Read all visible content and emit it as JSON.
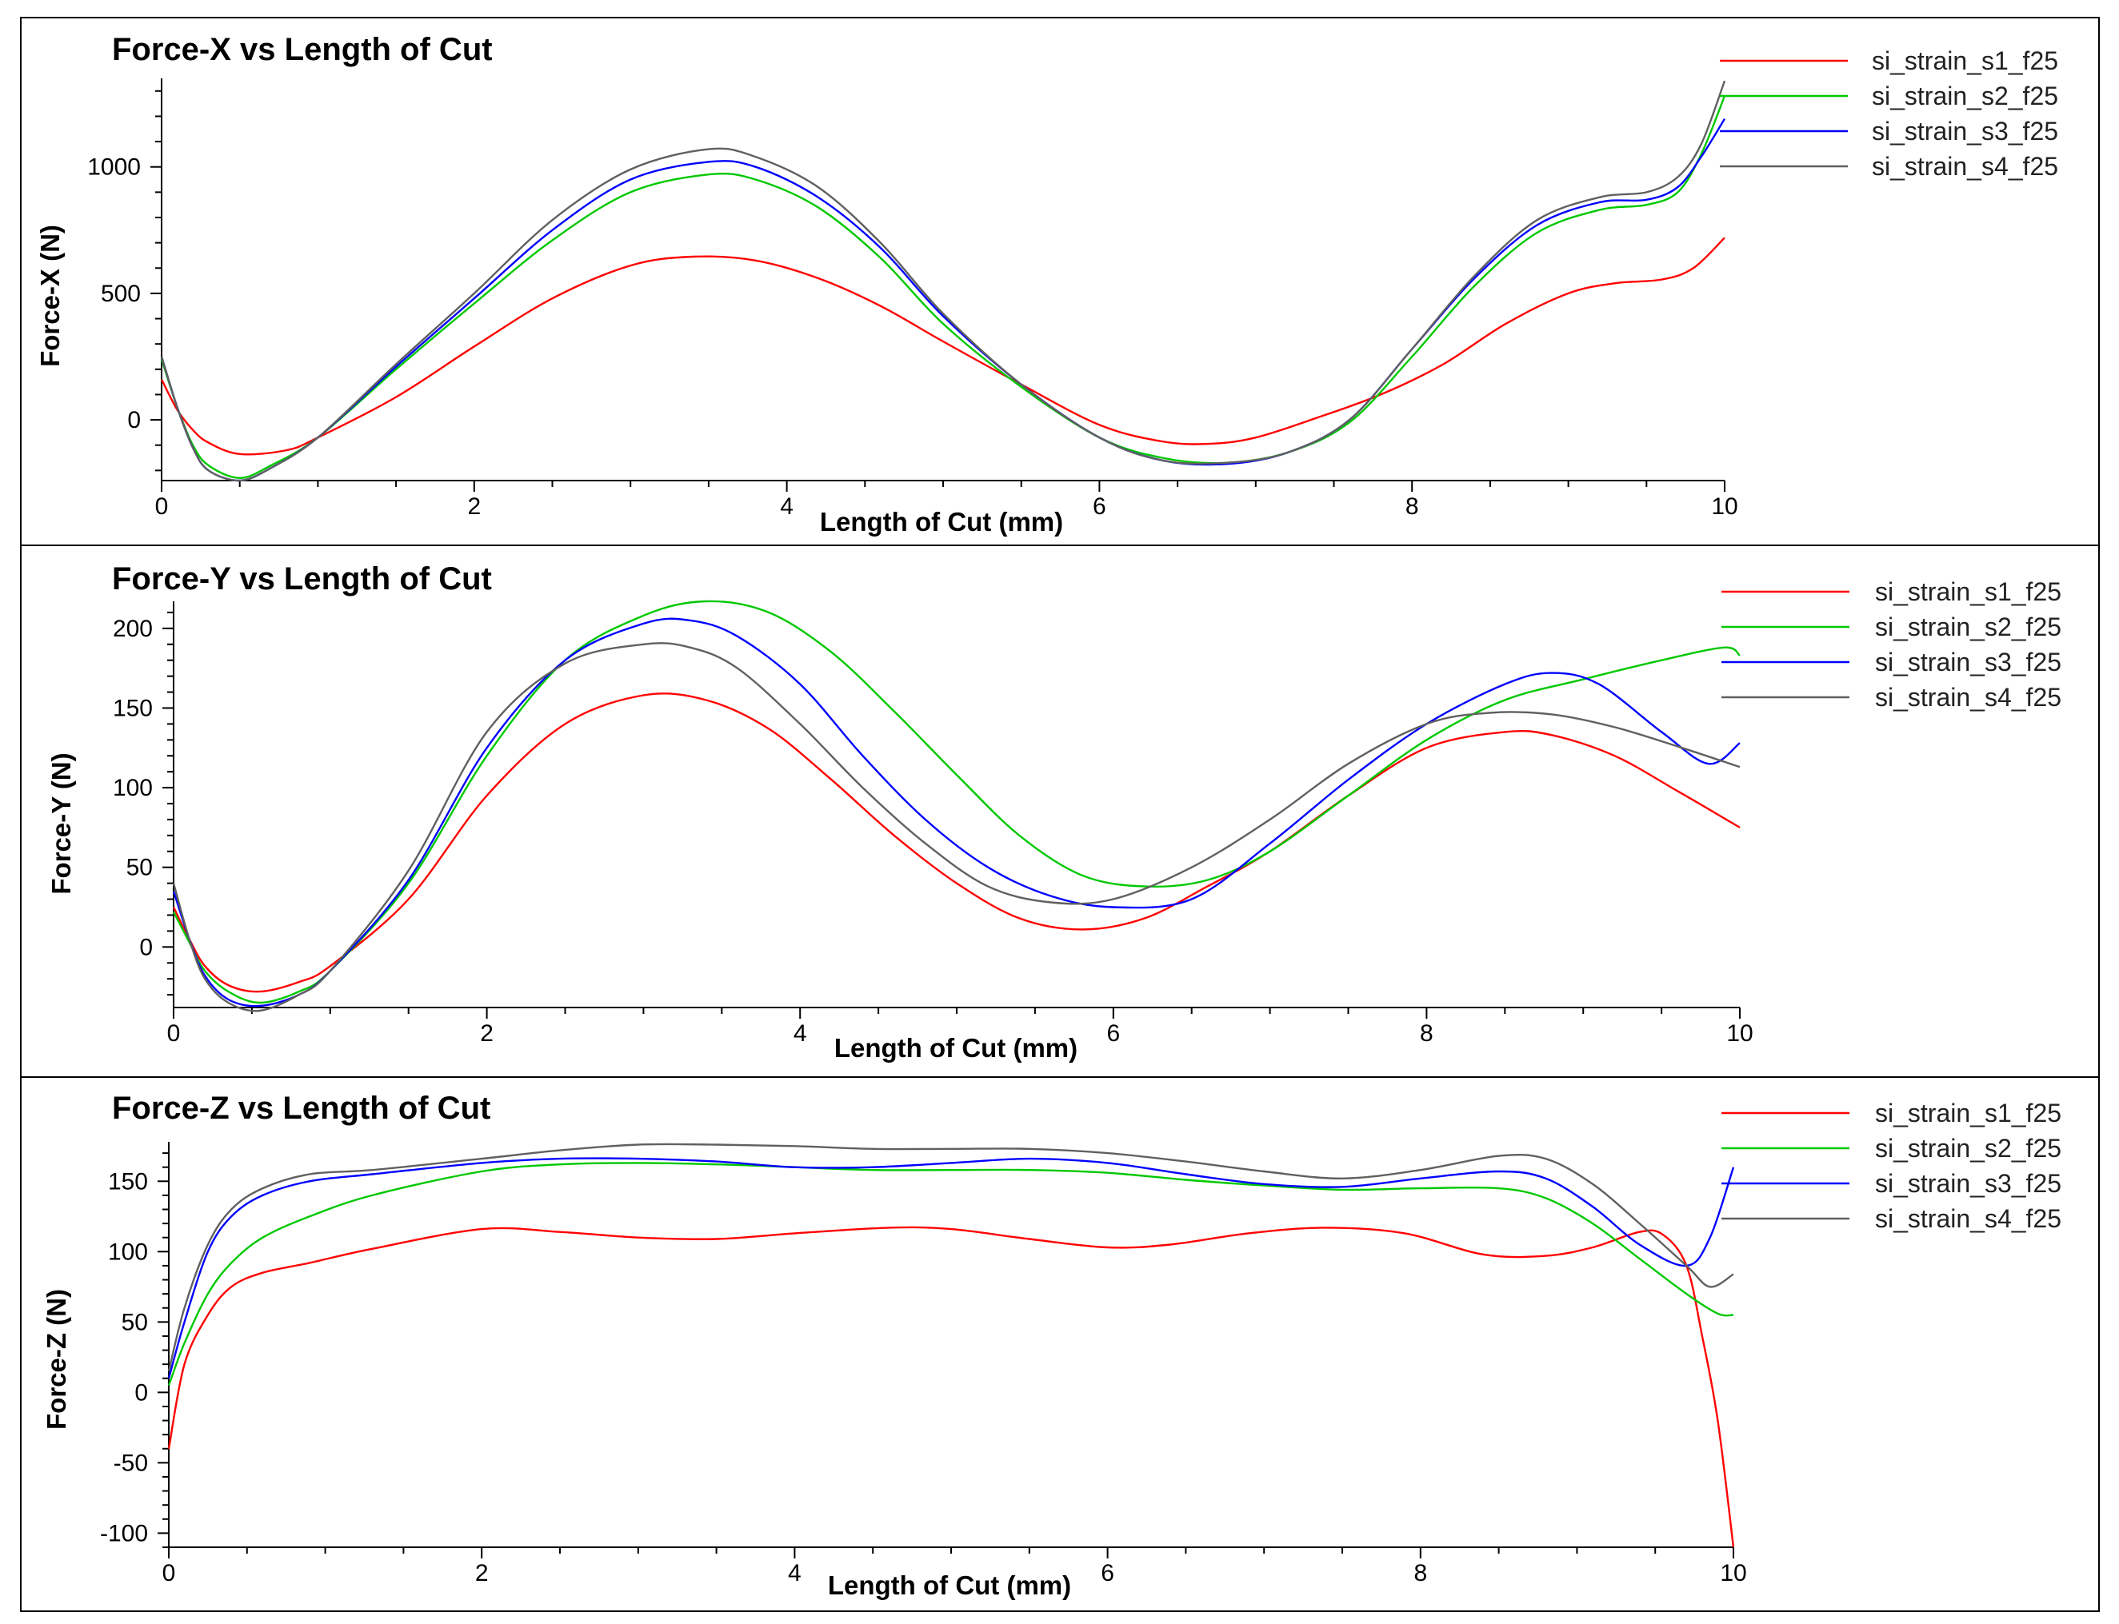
{
  "chart_data": [
    {
      "type": "line",
      "title": "Force-X vs Length of Cut",
      "xlabel": "Length of Cut (mm)",
      "ylabel": "Force-X (N)",
      "xlim": [
        0,
        10
      ],
      "ylim": [
        -240,
        1350
      ],
      "xticks": [
        0,
        2,
        4,
        6,
        8,
        10
      ],
      "yticks": [
        0,
        500,
        1000
      ],
      "series": [
        {
          "name": "si_strain_s1_f25",
          "color": "#ff0000",
          "x": [
            0,
            0.1,
            0.2,
            0.3,
            0.5,
            0.8,
            1.0,
            1.5,
            2.0,
            2.5,
            3.0,
            3.4,
            3.8,
            4.2,
            4.6,
            5.0,
            5.5,
            6.0,
            6.4,
            6.7,
            7.0,
            7.4,
            7.8,
            8.2,
            8.6,
            9.0,
            9.3,
            9.6,
            9.8,
            10.0
          ],
          "y": [
            160,
            40,
            -40,
            -90,
            -135,
            -120,
            -70,
            90,
            290,
            480,
            610,
            645,
            630,
            560,
            450,
            310,
            140,
            -20,
            -85,
            -95,
            -70,
            10,
            100,
            220,
            380,
            500,
            540,
            555,
            600,
            720
          ]
        },
        {
          "name": "si_strain_s2_f25",
          "color": "#00c800",
          "x": [
            0,
            0.1,
            0.2,
            0.3,
            0.5,
            0.7,
            1.0,
            1.5,
            2.0,
            2.5,
            3.0,
            3.5,
            3.8,
            4.2,
            4.6,
            5.0,
            5.5,
            6.0,
            6.4,
            6.8,
            7.2,
            7.6,
            8.0,
            8.4,
            8.8,
            9.2,
            9.5,
            9.7,
            9.85,
            10.0
          ],
          "y": [
            240,
            50,
            -100,
            -180,
            -230,
            -180,
            -70,
            200,
            460,
            710,
            900,
            970,
            950,
            840,
            640,
            380,
            130,
            -70,
            -150,
            -170,
            -130,
            -10,
            250,
            530,
            740,
            830,
            850,
            900,
            1050,
            1280
          ]
        },
        {
          "name": "si_strain_s3_f25",
          "color": "#0000ff",
          "x": [
            0,
            0.1,
            0.2,
            0.3,
            0.5,
            0.7,
            1.0,
            1.5,
            2.0,
            2.5,
            3.0,
            3.5,
            3.8,
            4.2,
            4.6,
            5.0,
            5.5,
            6.0,
            6.4,
            6.8,
            7.2,
            7.6,
            8.0,
            8.4,
            8.8,
            9.2,
            9.5,
            9.7,
            9.85,
            10.0
          ],
          "y": [
            250,
            50,
            -110,
            -200,
            -240,
            -190,
            -70,
            210,
            480,
            750,
            950,
            1020,
            1000,
            880,
            680,
            410,
            140,
            -70,
            -160,
            -175,
            -130,
            0,
            280,
            560,
            770,
            860,
            870,
            920,
            1040,
            1190
          ]
        },
        {
          "name": "si_strain_s4_f25",
          "color": "#606060",
          "x": [
            0,
            0.1,
            0.2,
            0.3,
            0.5,
            0.7,
            1.0,
            1.5,
            2.0,
            2.5,
            3.0,
            3.5,
            3.8,
            4.2,
            4.6,
            5.0,
            5.5,
            6.0,
            6.4,
            6.8,
            7.2,
            7.6,
            8.0,
            8.4,
            8.8,
            9.2,
            9.5,
            9.7,
            9.85,
            10.0
          ],
          "y": [
            250,
            50,
            -110,
            -200,
            -240,
            -190,
            -70,
            220,
            500,
            790,
            990,
            1070,
            1040,
            920,
            700,
            420,
            140,
            -70,
            -160,
            -170,
            -130,
            0,
            280,
            570,
            790,
            880,
            900,
            960,
            1090,
            1340
          ]
        }
      ]
    },
    {
      "type": "line",
      "title": "Force-Y vs Length of Cut",
      "xlabel": "Length of Cut (mm)",
      "ylabel": "Force-Y (N)",
      "xlim": [
        0,
        10
      ],
      "ylim": [
        -38,
        217
      ],
      "xticks": [
        0,
        2,
        4,
        6,
        8,
        10
      ],
      "yticks": [
        0,
        50,
        100,
        150,
        200
      ],
      "series": [
        {
          "name": "si_strain_s1_f25",
          "color": "#ff0000",
          "x": [
            0,
            0.1,
            0.2,
            0.35,
            0.55,
            0.8,
            1.0,
            1.5,
            2.0,
            2.5,
            3.0,
            3.4,
            3.8,
            4.2,
            4.6,
            5.0,
            5.4,
            5.8,
            6.2,
            6.6,
            7.0,
            7.5,
            8.0,
            8.5,
            8.8,
            9.2,
            9.6,
            10.0
          ],
          "y": [
            25,
            5,
            -12,
            -24,
            -28,
            -22,
            -12,
            30,
            95,
            140,
            158,
            155,
            137,
            105,
            70,
            40,
            18,
            11,
            18,
            38,
            60,
            95,
            125,
            135,
            133,
            120,
            98,
            75
          ]
        },
        {
          "name": "si_strain_s2_f25",
          "color": "#00c800",
          "x": [
            0,
            0.1,
            0.2,
            0.35,
            0.55,
            0.8,
            1.0,
            1.5,
            2.0,
            2.5,
            3.0,
            3.4,
            3.8,
            4.2,
            4.6,
            5.0,
            5.4,
            5.8,
            6.2,
            6.6,
            7.0,
            7.5,
            8.0,
            8.5,
            9.0,
            9.5,
            9.9,
            10.0
          ],
          "y": [
            22,
            3,
            -15,
            -28,
            -35,
            -28,
            -15,
            40,
            120,
            180,
            208,
            217,
            210,
            185,
            148,
            108,
            70,
            45,
            38,
            42,
            60,
            95,
            130,
            155,
            168,
            180,
            188,
            183
          ]
        },
        {
          "name": "si_strain_s3_f25",
          "color": "#0000ff",
          "x": [
            0,
            0.1,
            0.2,
            0.35,
            0.55,
            0.8,
            1.0,
            1.5,
            2.0,
            2.5,
            3.0,
            3.3,
            3.6,
            4.0,
            4.4,
            4.8,
            5.2,
            5.6,
            6.0,
            6.5,
            7.0,
            7.5,
            8.0,
            8.5,
            8.8,
            9.1,
            9.5,
            9.8,
            10.0
          ],
          "y": [
            35,
            5,
            -18,
            -33,
            -37,
            -30,
            -15,
            42,
            125,
            180,
            203,
            205,
            195,
            165,
            120,
            80,
            50,
            32,
            25,
            30,
            65,
            105,
            140,
            165,
            172,
            165,
            135,
            115,
            128
          ]
        },
        {
          "name": "si_strain_s4_f25",
          "color": "#606060",
          "x": [
            0,
            0.1,
            0.2,
            0.35,
            0.55,
            0.8,
            1.0,
            1.5,
            2.0,
            2.5,
            3.0,
            3.3,
            3.6,
            4.0,
            4.4,
            4.8,
            5.2,
            5.6,
            6.0,
            6.5,
            7.0,
            7.5,
            8.0,
            8.4,
            8.8,
            9.2,
            9.6,
            10.0
          ],
          "y": [
            40,
            5,
            -20,
            -35,
            -40,
            -30,
            -15,
            48,
            135,
            178,
            190,
            188,
            175,
            140,
            100,
            65,
            38,
            28,
            30,
            50,
            80,
            115,
            140,
            147,
            146,
            138,
            126,
            113
          ]
        }
      ]
    },
    {
      "type": "line",
      "title": "Force-Z vs Length of Cut",
      "xlabel": "Length of Cut (mm)",
      "ylabel": "Force-Z (N)",
      "xlim": [
        0,
        10
      ],
      "ylim": [
        -110,
        178
      ],
      "xticks": [
        0,
        2,
        4,
        6,
        8,
        10
      ],
      "yticks": [
        -100,
        -50,
        0,
        50,
        100,
        150
      ],
      "series": [
        {
          "name": "si_strain_s1_f25",
          "color": "#ff0000",
          "x": [
            0,
            0.1,
            0.25,
            0.4,
            0.6,
            0.9,
            1.3,
            2.0,
            2.5,
            3.0,
            3.5,
            4.0,
            4.6,
            5.0,
            5.5,
            6.0,
            6.4,
            6.9,
            7.4,
            7.9,
            8.4,
            8.8,
            9.1,
            9.4,
            9.55,
            9.7,
            9.8,
            9.9,
            10.0
          ],
          "y": [
            -40,
            20,
            55,
            75,
            85,
            92,
            102,
            116,
            114,
            110,
            109,
            113,
            117,
            116,
            109,
            103,
            105,
            113,
            117,
            113,
            98,
            97,
            103,
            114,
            112,
            90,
            40,
            -20,
            -110
          ]
        },
        {
          "name": "si_strain_s2_f25",
          "color": "#00c800",
          "x": [
            0,
            0.1,
            0.25,
            0.4,
            0.6,
            0.9,
            1.3,
            2.0,
            2.5,
            3.0,
            3.5,
            4.0,
            4.5,
            5.0,
            5.5,
            6.0,
            6.5,
            7.0,
            7.5,
            8.0,
            8.5,
            8.8,
            9.1,
            9.4,
            9.7,
            9.9,
            10.0
          ],
          "y": [
            5,
            35,
            70,
            92,
            110,
            125,
            140,
            157,
            162,
            163,
            162,
            160,
            158,
            158,
            158,
            156,
            151,
            147,
            144,
            145,
            145,
            138,
            120,
            95,
            70,
            56,
            55
          ]
        },
        {
          "name": "si_strain_s3_f25",
          "color": "#0000ff",
          "x": [
            0,
            0.1,
            0.25,
            0.4,
            0.6,
            0.9,
            1.3,
            2.0,
            2.5,
            3.0,
            3.5,
            4.0,
            4.5,
            5.0,
            5.5,
            6.0,
            6.5,
            7.0,
            7.5,
            8.0,
            8.5,
            8.8,
            9.1,
            9.4,
            9.7,
            9.85,
            10.0
          ],
          "y": [
            10,
            50,
            100,
            125,
            140,
            150,
            155,
            163,
            166,
            166,
            164,
            160,
            160,
            163,
            166,
            163,
            155,
            148,
            146,
            152,
            157,
            152,
            132,
            105,
            90,
            110,
            160
          ]
        },
        {
          "name": "si_strain_s4_f25",
          "color": "#606060",
          "x": [
            0,
            0.1,
            0.25,
            0.4,
            0.6,
            0.9,
            1.3,
            2.0,
            2.5,
            3.0,
            3.5,
            4.0,
            4.5,
            5.0,
            5.5,
            6.0,
            6.5,
            7.0,
            7.5,
            8.0,
            8.5,
            8.8,
            9.1,
            9.4,
            9.7,
            9.85,
            10.0
          ],
          "y": [
            15,
            60,
            105,
            130,
            145,
            155,
            158,
            166,
            172,
            176,
            176,
            175,
            173,
            173,
            173,
            170,
            164,
            157,
            152,
            158,
            168,
            166,
            148,
            120,
            90,
            75,
            84
          ]
        }
      ]
    }
  ]
}
